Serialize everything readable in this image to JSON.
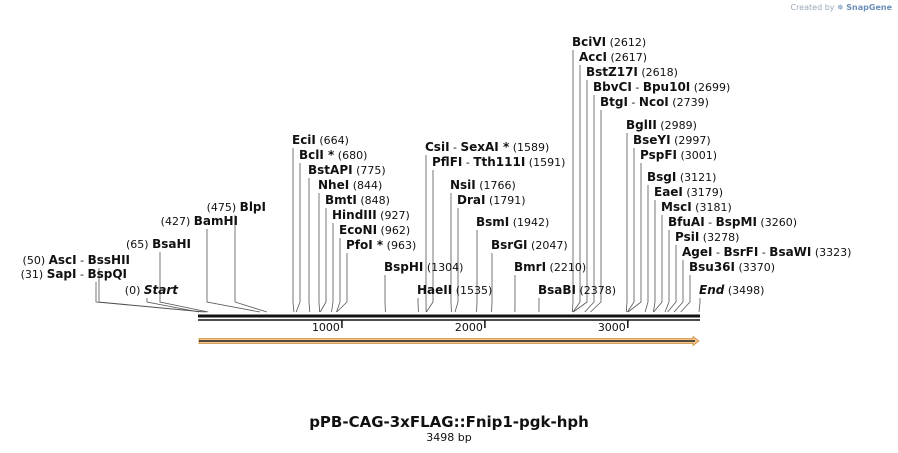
{
  "credit": {
    "prefix": "Created by",
    "brand": "SnapGene"
  },
  "plasmid": {
    "name": "pPB-CAG-3xFLAG::Fnip1-pgk-hph",
    "length_label": "3498 bp",
    "length": 3498
  },
  "colors": {
    "feature_fill": "#f5c58a",
    "feature_stroke": "#c98a3a",
    "line": "#111111"
  },
  "ticks": [
    "1000",
    "2000",
    "3000"
  ],
  "tick_values": [
    1000,
    2000,
    3000
  ],
  "sites": [
    {
      "names": [
        "Start"
      ],
      "pos": "(0)",
      "site": 0,
      "italic": true
    },
    {
      "names": [
        "SapI",
        "BspQI"
      ],
      "pos": "(31)",
      "site": 31
    },
    {
      "names": [
        "AscI",
        "BssHII"
      ],
      "pos": "(50)",
      "site": 50
    },
    {
      "names": [
        "BsaHI"
      ],
      "pos": "(65)",
      "site": 65
    },
    {
      "names": [
        "BamHI"
      ],
      "pos": "(427)",
      "site": 427
    },
    {
      "names": [
        "BlpI"
      ],
      "pos": "(475)",
      "site": 475
    },
    {
      "names": [
        "EciI"
      ],
      "pos": "(664)",
      "site": 664
    },
    {
      "names": [
        "BclI *"
      ],
      "pos": "(680)",
      "site": 680
    },
    {
      "names": [
        "BstAPI"
      ],
      "pos": "(775)",
      "site": 775
    },
    {
      "names": [
        "NheI"
      ],
      "pos": "(844)",
      "site": 844
    },
    {
      "names": [
        "BmtI"
      ],
      "pos": "(848)",
      "site": 848
    },
    {
      "names": [
        "HindIII"
      ],
      "pos": "(927)",
      "site": 927
    },
    {
      "names": [
        "EcoNI"
      ],
      "pos": "(962)",
      "site": 962
    },
    {
      "names": [
        "PfoI *"
      ],
      "pos": "(963)",
      "site": 963
    },
    {
      "names": [
        "BspHI"
      ],
      "pos": "(1304)",
      "site": 1304
    },
    {
      "names": [
        "HaeII"
      ],
      "pos": "(1535)",
      "site": 1535
    },
    {
      "names": [
        "CsiI",
        "SexAI *"
      ],
      "pos": "(1589)",
      "site": 1589
    },
    {
      "names": [
        "PflFI",
        "Tth111I"
      ],
      "pos": "(1591)",
      "site": 1591
    },
    {
      "names": [
        "NsiI"
      ],
      "pos": "(1766)",
      "site": 1766
    },
    {
      "names": [
        "DraI"
      ],
      "pos": "(1791)",
      "site": 1791
    },
    {
      "names": [
        "BsmI"
      ],
      "pos": "(1942)",
      "site": 1942
    },
    {
      "names": [
        "BsrGI"
      ],
      "pos": "(2047)",
      "site": 2047
    },
    {
      "names": [
        "BmrI"
      ],
      "pos": "(2210)",
      "site": 2210
    },
    {
      "names": [
        "BsaBI"
      ],
      "pos": "(2378)",
      "site": 2378
    },
    {
      "names": [
        "BciVI"
      ],
      "pos": "(2612)",
      "site": 2612
    },
    {
      "names": [
        "AccI"
      ],
      "pos": "(2617)",
      "site": 2617
    },
    {
      "names": [
        "BstZ17I"
      ],
      "pos": "(2618)",
      "site": 2618
    },
    {
      "names": [
        "BbvCI",
        "Bpu10I"
      ],
      "pos": "(2699)",
      "site": 2699
    },
    {
      "names": [
        "BtgI",
        "NcoI"
      ],
      "pos": "(2739)",
      "site": 2739
    },
    {
      "names": [
        "BglII"
      ],
      "pos": "(2989)",
      "site": 2989
    },
    {
      "names": [
        "BseYI"
      ],
      "pos": "(2997)",
      "site": 2997
    },
    {
      "names": [
        "PspFI"
      ],
      "pos": "(3001)",
      "site": 3001
    },
    {
      "names": [
        "BsgI"
      ],
      "pos": "(3121)",
      "site": 3121
    },
    {
      "names": [
        "EaeI"
      ],
      "pos": "(3179)",
      "site": 3179
    },
    {
      "names": [
        "MscI"
      ],
      "pos": "(3181)",
      "site": 3181
    },
    {
      "names": [
        "BfuAI",
        "BspMI"
      ],
      "pos": "(3260)",
      "site": 3260
    },
    {
      "names": [
        "PsiI"
      ],
      "pos": "(3278)",
      "site": 3278
    },
    {
      "names": [
        "AgeI",
        "BsrFI",
        "BsaWI"
      ],
      "pos": "(3323)",
      "site": 3323
    },
    {
      "names": [
        "Bsu36I"
      ],
      "pos": "(3370)",
      "site": 3370
    },
    {
      "names": [
        "End"
      ],
      "pos": "(3498)",
      "site": 3498,
      "italic": true
    }
  ]
}
